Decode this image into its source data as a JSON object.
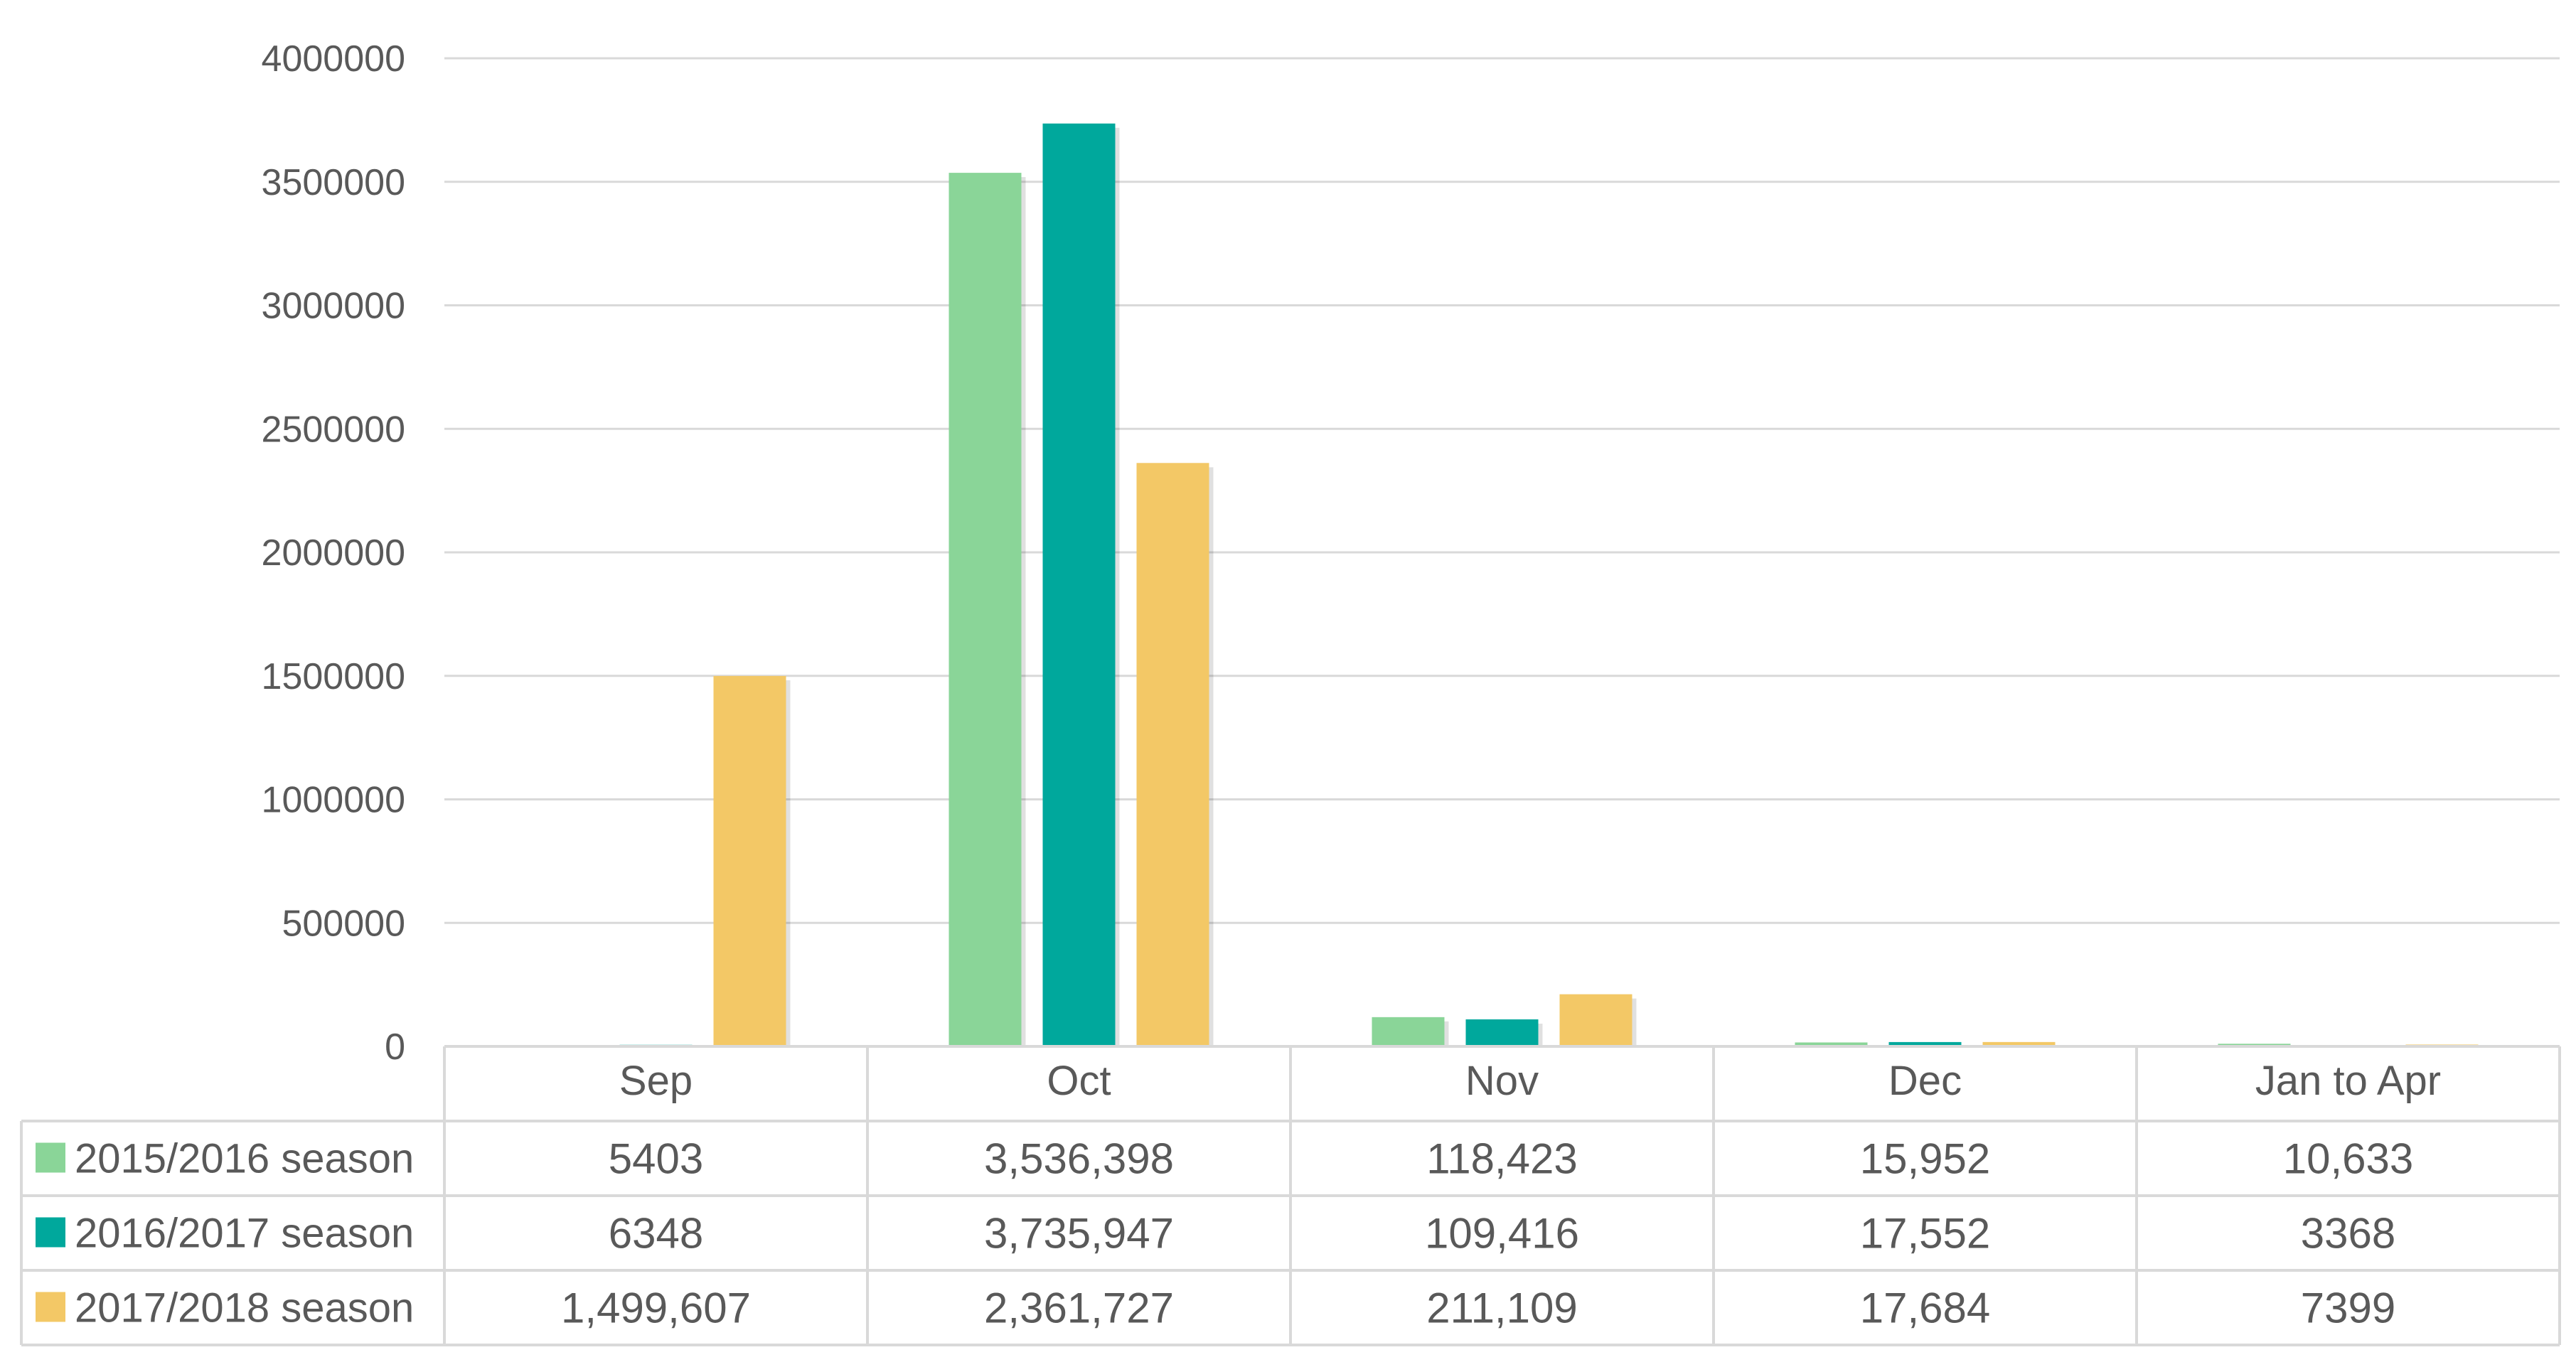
{
  "chart_data": {
    "type": "bar",
    "categories": [
      "Sep",
      "Oct",
      "Nov",
      "Dec",
      "Jan to Apr"
    ],
    "series": [
      {
        "name": "2015/2016 season",
        "color": "#8ad598",
        "values": [
          5403,
          3536398,
          118423,
          15952,
          10633
        ],
        "labels": [
          "5403",
          "3,536,398",
          "118,423",
          "15,952",
          "10,633"
        ]
      },
      {
        "name": "2016/2017 season",
        "color": "#00a89c",
        "values": [
          6348,
          3735947,
          109416,
          17552,
          3368
        ],
        "labels": [
          "6348",
          "3,735,947",
          "109,416",
          "17,552",
          "3368"
        ]
      },
      {
        "name": "2017/2018 season",
        "color": "#f3c866",
        "values": [
          1499607,
          2361727,
          211109,
          17684,
          7399
        ],
        "labels": [
          "1,499,607",
          "2,361,727",
          "211,109",
          "17,684",
          "7399"
        ]
      }
    ],
    "ylim": [
      0,
      4000000
    ],
    "yticks": [
      0,
      500000,
      1000000,
      1500000,
      2000000,
      2500000,
      3000000,
      3500000,
      4000000
    ],
    "ytick_labels": [
      "0",
      "500000",
      "1000000",
      "1500000",
      "2000000",
      "2500000",
      "3000000",
      "3500000",
      "4000000"
    ],
    "grid": true,
    "legend": "data-table",
    "title": "",
    "xlabel": "",
    "ylabel": ""
  }
}
